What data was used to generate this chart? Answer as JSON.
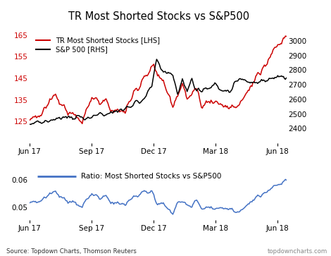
{
  "title": "TR Most Shorted Stocks vs S&P500",
  "lhs_label": "TR Most Shorted Stocks [LHS]",
  "rhs_label": "S&P 500 [RHS]",
  "ratio_label": "Ratio: Most Shorted Stocks vs S&P500",
  "source_text": "Source: Topdown Charts, Thomson Reuters",
  "watermark": "topdowncharts.com",
  "lhs_color": "#cc0000",
  "rhs_color": "#000000",
  "ratio_color": "#4472c4",
  "lhs_ylim": [
    115,
    167
  ],
  "lhs_yticks": [
    125,
    135,
    145,
    155,
    165
  ],
  "rhs_ylim": [
    2300,
    3070
  ],
  "rhs_yticks": [
    2400,
    2500,
    2600,
    2700,
    2800,
    2900,
    3000
  ],
  "ratio_ylim": [
    0.0455,
    0.063
  ],
  "ratio_yticks": [
    0.05,
    0.06
  ],
  "xtick_labels": [
    "Jun 17",
    "Sep 17",
    "Dec 17",
    "Mar 18",
    "Jun 18"
  ],
  "background_color": "#ffffff"
}
